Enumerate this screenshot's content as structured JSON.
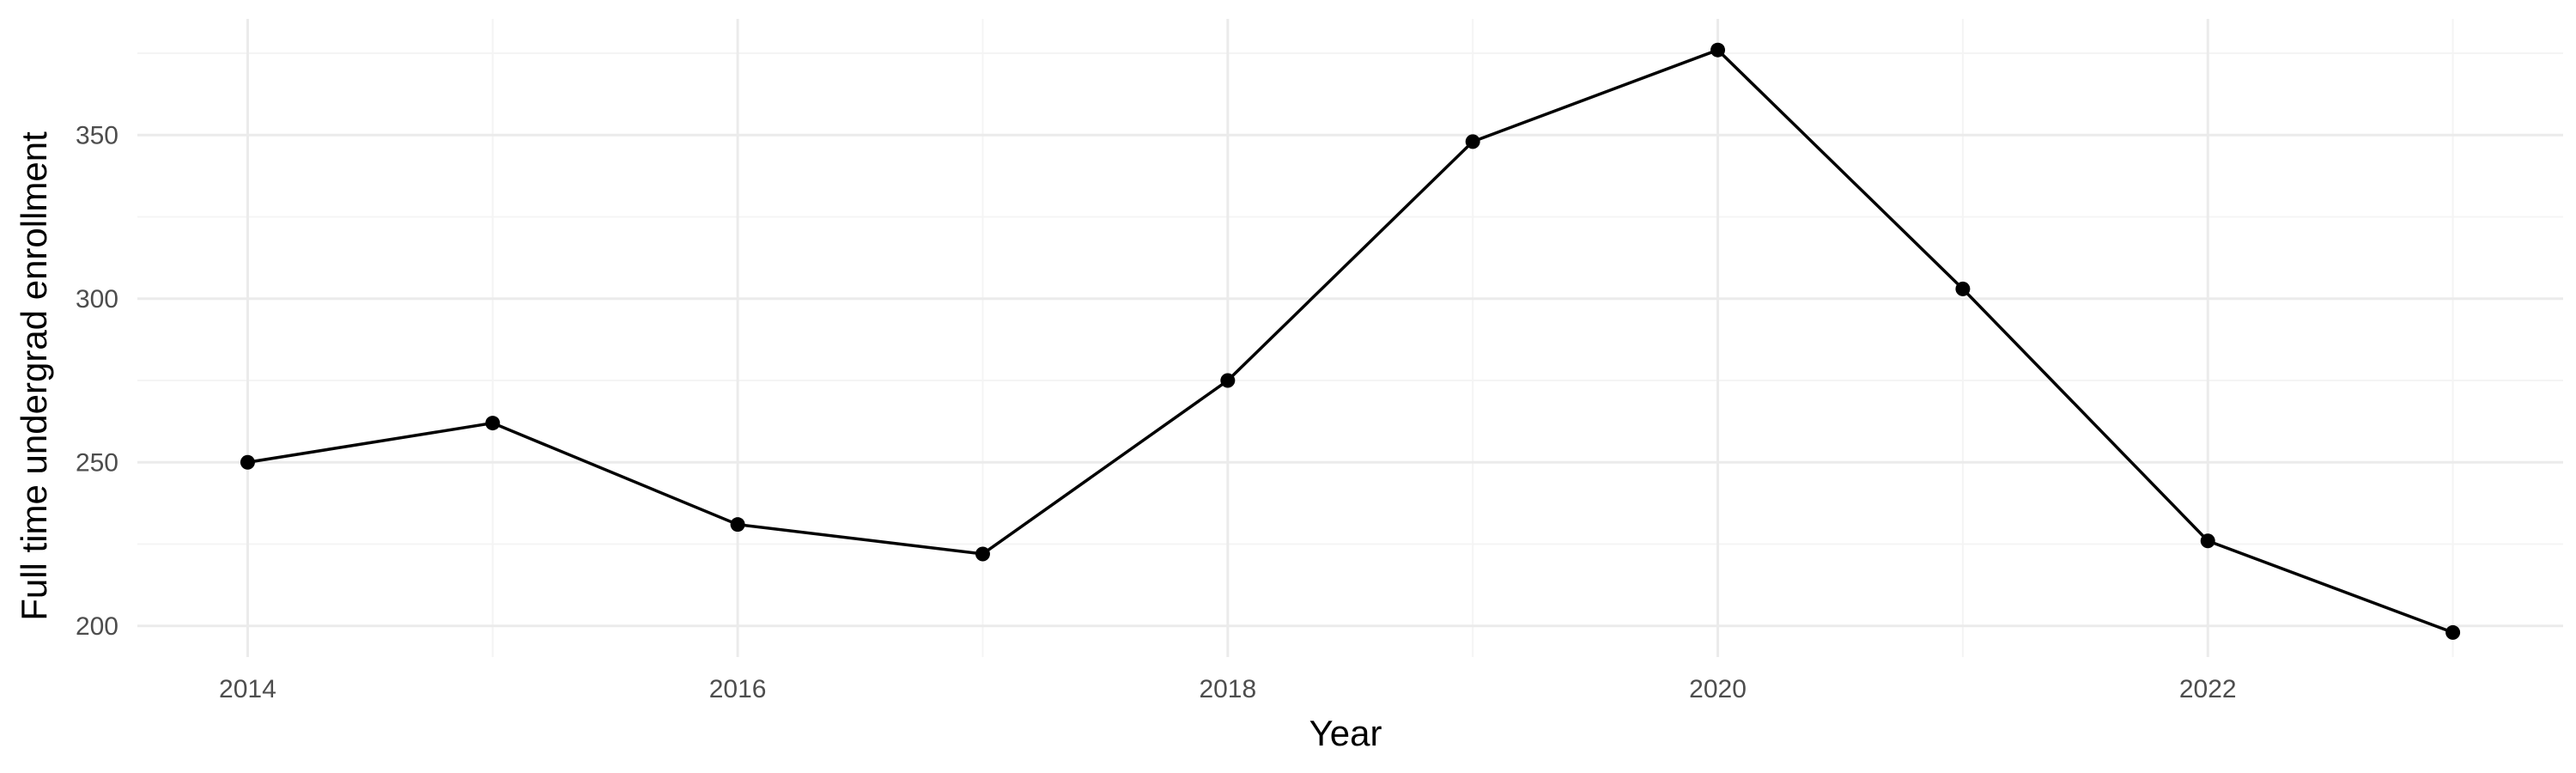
{
  "chart_data": {
    "type": "line",
    "title": "",
    "xlabel": "Year",
    "ylabel": "Full time undergrad enrollment",
    "x": [
      2014,
      2015,
      2016,
      2017,
      2018,
      2019,
      2020,
      2021,
      2022,
      2023
    ],
    "series": [
      {
        "values": [
          250,
          262,
          231,
          222,
          275,
          348,
          376,
          303,
          226,
          198
        ]
      }
    ],
    "xlim": [
      2013.55,
      2023.45
    ],
    "ylim": [
      190.5,
      385.5
    ],
    "x_ticks": [
      2014,
      2016,
      2018,
      2020,
      2022
    ],
    "x_tick_labels": [
      "2014",
      "2016",
      "2018",
      "2020",
      "2022"
    ],
    "x_minor_ticks": [
      2015,
      2017,
      2019,
      2021,
      2023
    ],
    "y_ticks": [
      200,
      250,
      300,
      350
    ],
    "y_tick_labels": [
      "200",
      "250",
      "300",
      "350"
    ],
    "y_minor_ticks": [
      225,
      275,
      325,
      375
    ],
    "grid": true,
    "legend": "none",
    "colors": {
      "line": "#000000",
      "grid_major": "#ebebeb",
      "grid_minor": "#f4f4f4",
      "tick_text": "#4d4d4d"
    }
  }
}
